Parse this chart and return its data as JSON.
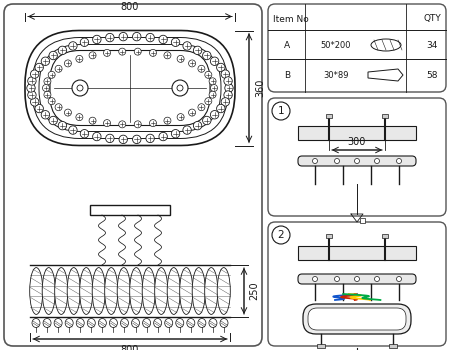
{
  "bg_color": "#ffffff",
  "line_color": "#1a1a1a",
  "dim_800_top": "800",
  "dim_360": "360",
  "dim_250": "250",
  "dim_800_bot": "800",
  "dim_300": "300",
  "table_item_no": "Item No",
  "table_qty": "QTY",
  "row_a_label": "A",
  "row_a_size": "50*200",
  "row_a_qty": "34",
  "row_b_label": "B",
  "row_b_size": "30*89",
  "row_b_qty": "58",
  "step1_label": "1",
  "step2_label": "2"
}
